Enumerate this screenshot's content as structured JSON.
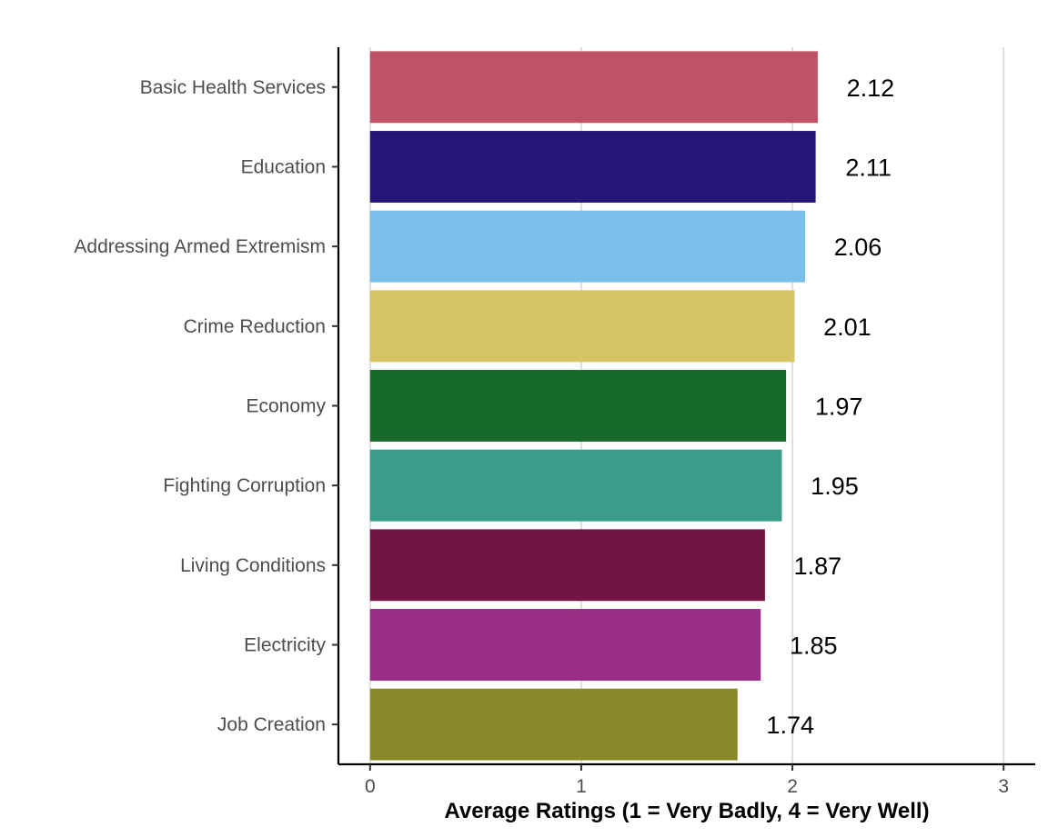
{
  "chart_data": {
    "type": "bar",
    "orientation": "horizontal",
    "categories": [
      "Basic Health Services",
      "Education",
      "Addressing Armed Extremism",
      "Crime Reduction",
      "Economy",
      "Fighting Corruption",
      "Living Conditions",
      "Electricity",
      "Job Creation"
    ],
    "values": [
      2.12,
      2.11,
      2.06,
      2.01,
      1.97,
      1.95,
      1.87,
      1.85,
      1.74
    ],
    "data_labels": [
      "2.12",
      "2.11",
      "2.06",
      "2.01",
      "1.97",
      "1.95",
      "1.87",
      "1.85",
      "1.74"
    ],
    "colors": [
      "#be5266",
      "#271577",
      "#7abfe9",
      "#d6c365",
      "#176a28",
      "#3b9c89",
      "#731543",
      "#992d87",
      "#888a29"
    ],
    "xlabel": "Average Ratings (1 = Very Badly, 4 = Very Well)",
    "ylabel": "",
    "xlim": [
      -0.15,
      3.15
    ],
    "xticks": [
      0,
      1,
      2,
      3
    ],
    "xtick_labels": [
      "0",
      "1",
      "2",
      "3"
    ],
    "grid": "vertical major",
    "legend": "none"
  }
}
